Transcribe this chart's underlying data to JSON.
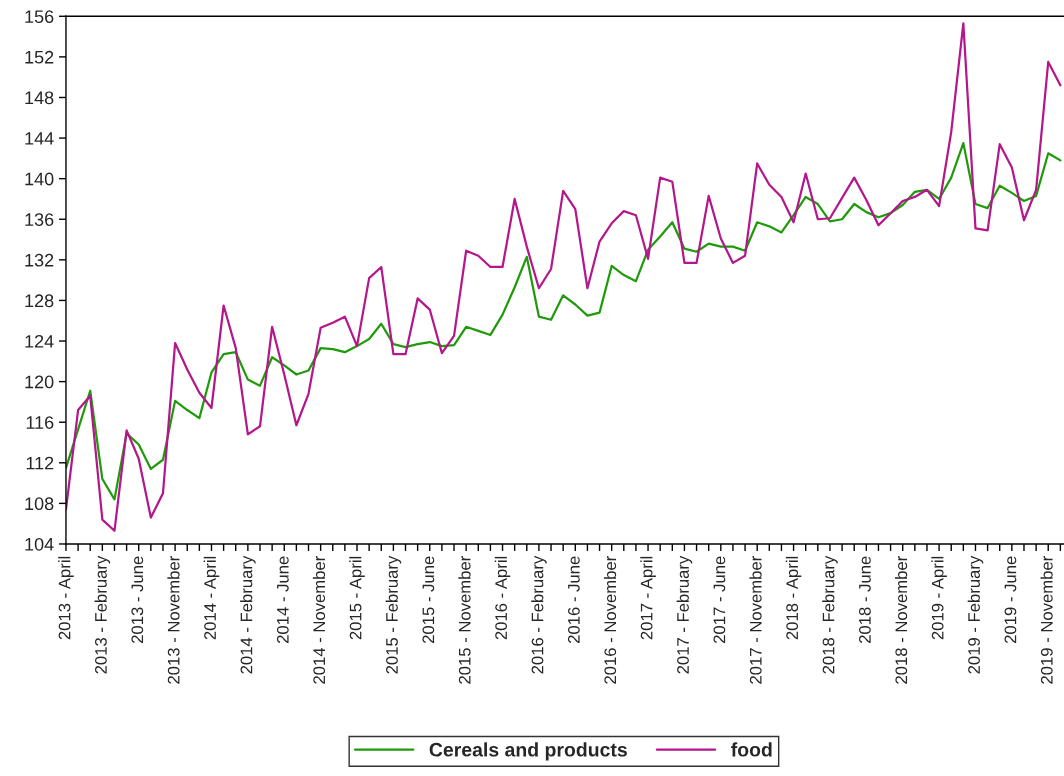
{
  "chart_data": {
    "type": "line",
    "categories": [
      "2013 - April",
      null,
      null,
      "2013 - February",
      null,
      null,
      "2013 - June",
      null,
      null,
      "2013 - November",
      null,
      null,
      "2014 - April",
      null,
      null,
      "2014 - February",
      null,
      null,
      "2014 - June",
      null,
      null,
      "2014 - November",
      null,
      null,
      "2015 - April",
      null,
      null,
      "2015 - February",
      null,
      null,
      "2015 - June",
      null,
      null,
      "2015 - November",
      null,
      null,
      "2016 - April",
      null,
      null,
      "2016 - February",
      null,
      null,
      "2016 - June",
      null,
      null,
      "2016 - November",
      null,
      null,
      "2017 - April",
      null,
      null,
      "2017 - February",
      null,
      null,
      "2017 - June",
      null,
      null,
      "2017 - November",
      null,
      null,
      "2018 - April",
      null,
      null,
      "2018 - February",
      null,
      null,
      "2018 - June",
      null,
      null,
      "2018 - November",
      null,
      null,
      "2019 - April",
      null,
      null,
      "2019 - February",
      null,
      null,
      "2019 - June",
      null,
      null,
      "2019 - November",
      null
    ],
    "series": [
      {
        "name": "Cereals and products",
        "color": "#1f9a0a",
        "values": [
          111.5,
          115.3,
          119.1,
          110.4,
          108.4,
          114.9,
          113.8,
          111.4,
          112.3,
          118.1,
          117.2,
          116.4,
          120.9,
          122.7,
          122.9,
          120.2,
          119.6,
          122.4,
          121.6,
          120.7,
          121.1,
          123.3,
          123.2,
          122.9,
          123.5,
          124.2,
          125.7,
          123.7,
          123.4,
          123.7,
          123.9,
          123.5,
          123.6,
          125.4,
          125.0,
          124.6,
          126.6,
          129.3,
          132.3,
          126.4,
          126.1,
          128.5,
          127.6,
          126.5,
          126.8,
          131.4,
          130.5,
          129.9,
          133.0,
          134.3,
          135.7,
          133.1,
          132.8,
          133.6,
          133.3,
          133.3,
          132.9,
          135.7,
          135.3,
          134.7,
          136.4,
          138.2,
          137.5,
          135.8,
          136.0,
          137.5,
          136.7,
          136.2,
          136.6,
          137.4,
          138.7,
          138.9,
          138.0,
          140.1,
          143.5,
          137.5,
          137.1,
          139.3,
          138.6,
          137.8,
          138.3,
          142.5,
          141.8
        ]
      },
      {
        "name": "food",
        "color": "#b4168c",
        "values": [
          107.4,
          117.2,
          118.6,
          106.4,
          105.3,
          115.2,
          112.4,
          106.6,
          109.0,
          123.8,
          121.2,
          118.9,
          117.4,
          127.5,
          123.3,
          114.8,
          115.6,
          125.4,
          120.7,
          115.7,
          118.8,
          125.3,
          125.8,
          126.4,
          123.5,
          130.2,
          131.3,
          122.7,
          122.7,
          128.2,
          127.1,
          122.8,
          124.5,
          132.9,
          132.4,
          131.3,
          131.3,
          138.0,
          133.3,
          129.2,
          131.1,
          138.8,
          137.0,
          129.2,
          133.8,
          135.6,
          136.8,
          136.4,
          132.1,
          140.1,
          139.7,
          131.7,
          131.7,
          138.3,
          134.1,
          131.7,
          132.4,
          141.5,
          139.4,
          138.2,
          135.7,
          140.5,
          136.0,
          136.1,
          138.1,
          140.1,
          137.9,
          135.4,
          136.6,
          137.8,
          138.2,
          138.9,
          137.3,
          144.6,
          155.3,
          135.1,
          134.9,
          143.4,
          141.1,
          135.9,
          138.9,
          151.5,
          149.2
        ]
      }
    ],
    "ylim": [
      104,
      156
    ],
    "yticks": [
      104,
      108,
      112,
      116,
      120,
      124,
      128,
      132,
      136,
      140,
      144,
      148,
      152,
      156
    ],
    "grid": false,
    "legend": "bottom",
    "marker": "none",
    "line_style": "solid"
  }
}
